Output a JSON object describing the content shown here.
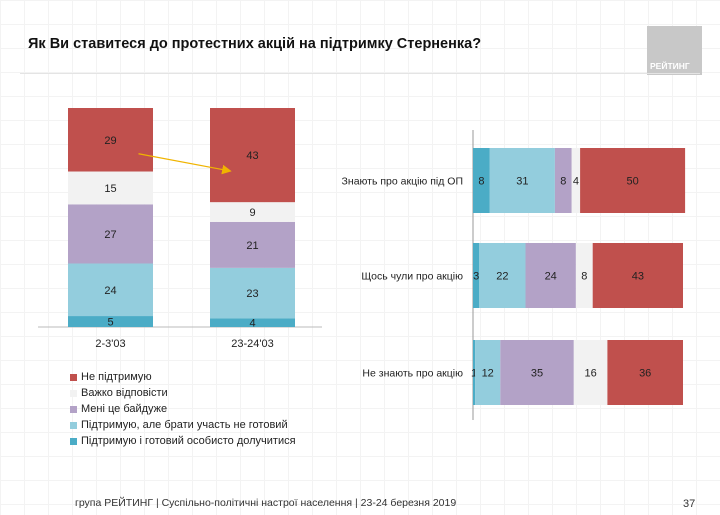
{
  "title": "Як Ви ставитеся до протестних акцій на підтримку Стерненка?",
  "logo_text": "РЕЙТИНГ",
  "footer": "група РЕЙТИНГ | Суспільно-політичні настрої населення  | 23-24 березня 2019",
  "page_number": "37",
  "colors": {
    "Не підтримую": "#c0504d",
    "Важко відповісти": "#f2f2f2",
    "Мені це байдуже": "#b3a2c7",
    "Підтримую, але брати участь не готовий": "#93cddd",
    "Підтримую і готовий особисто долучитися": "#4bacc6"
  },
  "legend": [
    "Не підтримую",
    "Важко відповісти",
    "Мені це байдуже",
    "Підтримую, але брати участь не готовий",
    "Підтримую і готовий особисто долучитися"
  ],
  "chart_data": [
    {
      "type": "bar",
      "orientation": "vertical",
      "stacked": true,
      "categories": [
        "2-3'03",
        "23-24'03"
      ],
      "series": [
        {
          "name": "Підтримую і готовий особисто долучитися",
          "values": [
            5,
            4
          ]
        },
        {
          "name": "Підтримую, але брати участь не готовий",
          "values": [
            24,
            23
          ]
        },
        {
          "name": "Мені це байдуже",
          "values": [
            27,
            21
          ]
        },
        {
          "name": "Важко відповісти",
          "values": [
            15,
            9
          ]
        },
        {
          "name": "Не підтримую",
          "values": [
            29,
            43
          ]
        }
      ],
      "annotation": "arrow from 29 to 43",
      "legend_position": "bottom"
    },
    {
      "type": "bar",
      "orientation": "horizontal",
      "stacked": true,
      "categories": [
        "Знають про акцію під ОП",
        "Щось чули про акцію",
        "Не знають про акцію"
      ],
      "series": [
        {
          "name": "Підтримую і готовий особисто долучитися",
          "values": [
            8,
            3,
            1
          ]
        },
        {
          "name": "Підтримую, але брати участь не готовий",
          "values": [
            31,
            22,
            12
          ]
        },
        {
          "name": "Мені це байдуже",
          "values": [
            8,
            24,
            35
          ]
        },
        {
          "name": "Важко відповісти",
          "values": [
            null,
            8,
            16
          ]
        },
        {
          "name": "Не підтримую",
          "values": [
            50,
            43,
            36
          ]
        }
      ],
      "outside_labels": [
        "4",
        null,
        null
      ]
    }
  ]
}
